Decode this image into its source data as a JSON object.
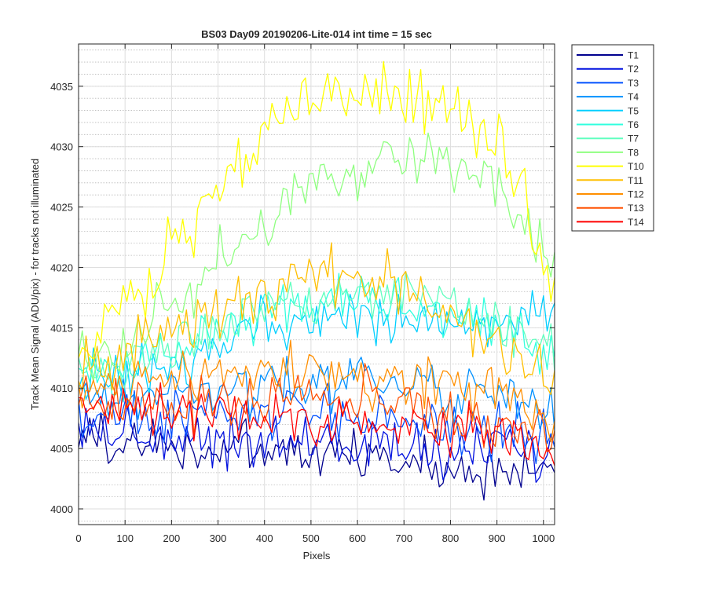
{
  "chart_data": {
    "type": "line",
    "title": "BS03 Day09 20190206-Lite-014 int time = 15 sec",
    "xlabel": "Pixels",
    "ylabel": "Track Mean Signal (ADU/pix) - for tracks not illuminated",
    "xlim": [
      0,
      1024
    ],
    "ylim": [
      3998.7,
      4038.5
    ],
    "x_ticks": [
      0,
      100,
      200,
      300,
      400,
      500,
      600,
      700,
      800,
      900,
      1000
    ],
    "y_ticks": [
      4000,
      4005,
      4010,
      4015,
      4020,
      4025,
      4030,
      4035
    ],
    "y_minor_step": 1,
    "grid": true,
    "legend_position": "outside-top-right",
    "x_sampling": "every 8 pixels, 0 to 1024",
    "series": [
      {
        "name": "T1",
        "color": "#00008F",
        "center": [
          4006.2,
          4005.6,
          4005.2,
          4005.0,
          4004.8,
          4004.6,
          4004.4,
          4004.0,
          4003.7,
          4003.4,
          4003.2,
          4002.9
        ],
        "noise": 1.6
      },
      {
        "name": "T2",
        "color": "#0010DF",
        "center": [
          4007.0,
          4006.3,
          4006.0,
          4005.8,
          4005.7,
          4005.6,
          4005.4,
          4005.2,
          4005.0,
          4004.8,
          4004.6,
          4004.3
        ],
        "noise": 1.6
      },
      {
        "name": "T3",
        "color": "#0050FF",
        "center": [
          4007.8,
          4007.3,
          4007.5,
          4007.7,
          4007.9,
          4008.0,
          4007.9,
          4007.6,
          4007.2,
          4006.8,
          4006.3,
          4005.6
        ],
        "noise": 1.6
      },
      {
        "name": "T4",
        "color": "#0090FF",
        "center": [
          4009.5,
          4008.8,
          4009.3,
          4009.9,
          4010.3,
          4010.6,
          4010.7,
          4010.5,
          4010.2,
          4009.7,
          4009.1,
          4008.4
        ],
        "noise": 1.6
      },
      {
        "name": "T5",
        "color": "#00CFFF",
        "center": [
          4010.5,
          4010.3,
          4011.7,
          4013.2,
          4014.5,
          4015.4,
          4015.9,
          4016.0,
          4015.7,
          4015.5,
          4015.6,
          4015.9
        ],
        "noise": 1.6
      },
      {
        "name": "T6",
        "color": "#30FFDF",
        "center": [
          4011.0,
          4011.3,
          4012.7,
          4014.3,
          4015.6,
          4016.6,
          4017.2,
          4017.3,
          4016.9,
          4015.9,
          4014.4,
          4012.8
        ],
        "noise": 1.6
      },
      {
        "name": "T7",
        "color": "#60FFBF",
        "center": [
          4010.8,
          4011.4,
          4012.9,
          4014.5,
          4015.8,
          4016.9,
          4017.5,
          4017.6,
          4017.1,
          4016.1,
          4014.7,
          4012.9
        ],
        "noise": 1.5
      },
      {
        "name": "T8",
        "color": "#8FFF80",
        "center": [
          4011.8,
          4013.3,
          4016.8,
          4020.2,
          4023.3,
          4025.8,
          4027.4,
          4028.6,
          4029.3,
          4028.4,
          4025.6,
          4019.8
        ],
        "noise": 1.7
      },
      {
        "name": "T10",
        "color": "#FFFF00",
        "center": [
          4012.6,
          4015.3,
          4020.6,
          4025.6,
          4029.8,
          4033.1,
          4035.1,
          4034.9,
          4034.2,
          4032.6,
          4028.4,
          4019.2
        ],
        "noise": 2.0
      },
      {
        "name": "T11",
        "color": "#FFBF00",
        "center": [
          4011.8,
          4012.6,
          4014.3,
          4016.1,
          4017.6,
          4018.9,
          4019.6,
          4018.9,
          4017.5,
          4015.6,
          4013.3,
          4010.6
        ],
        "noise": 1.8
      },
      {
        "name": "T12",
        "color": "#FF8F00",
        "center": [
          4010.2,
          4009.9,
          4010.5,
          4011.0,
          4011.3,
          4011.4,
          4011.3,
          4010.9,
          4010.4,
          4009.7,
          4008.9,
          4007.9
        ],
        "noise": 1.6
      },
      {
        "name": "T13",
        "color": "#FF5000",
        "center": [
          4009.4,
          4008.7,
          4009.0,
          4009.2,
          4009.3,
          4009.3,
          4009.2,
          4008.9,
          4008.4,
          4007.8,
          4007.1,
          4006.3
        ],
        "noise": 1.6
      },
      {
        "name": "T14",
        "color": "#FF0000",
        "center": [
          4008.8,
          4008.1,
          4008.0,
          4008.0,
          4007.9,
          4007.7,
          4007.5,
          4007.2,
          4006.8,
          4006.3,
          4005.6,
          4004.8
        ],
        "noise": 1.6
      }
    ]
  }
}
